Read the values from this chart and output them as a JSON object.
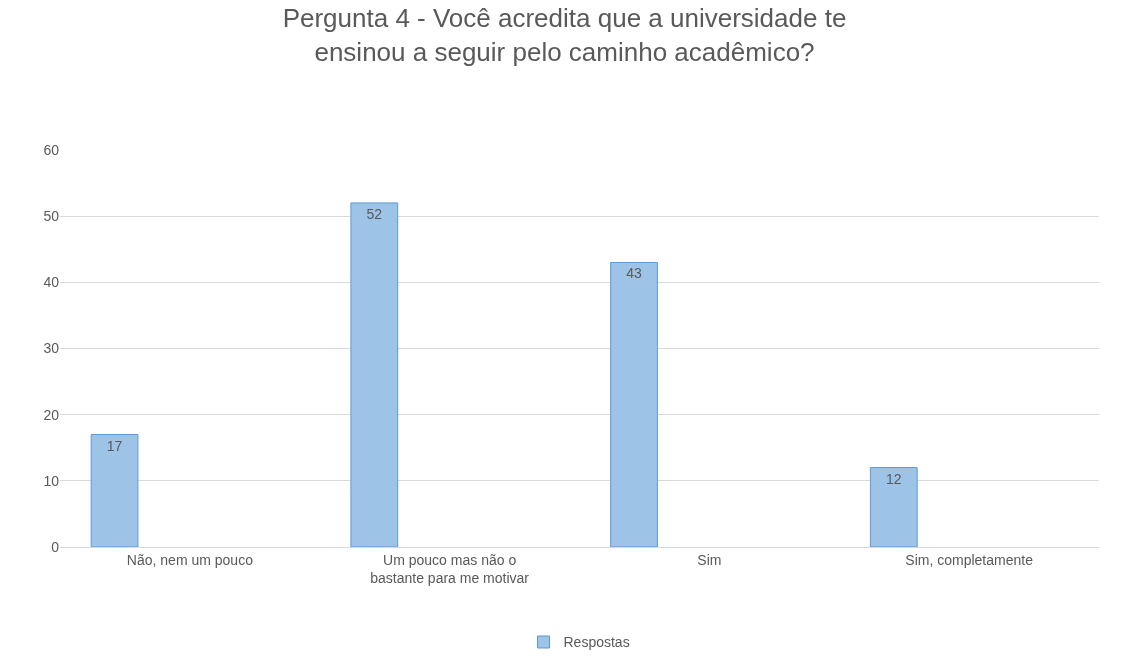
{
  "chart_data": {
    "type": "bar",
    "title": "Pergunta 4 - Você acredita que a universidade te ensinou a seguir pelo caminho acadêmico?",
    "categories": [
      "Não, nem um pouco",
      "Um pouco mas não o bastante para me motivar",
      "Sim",
      "Sim, completamente"
    ],
    "series": [
      {
        "name": "Respostas",
        "color": "#9dc3e6",
        "values": [
          17,
          52,
          43,
          12
        ]
      }
    ],
    "ylim": [
      0,
      60
    ],
    "yticks": [
      0,
      10,
      20,
      30,
      40,
      50,
      60
    ],
    "grid": "y",
    "legend": "bottom",
    "data_labels": true
  }
}
